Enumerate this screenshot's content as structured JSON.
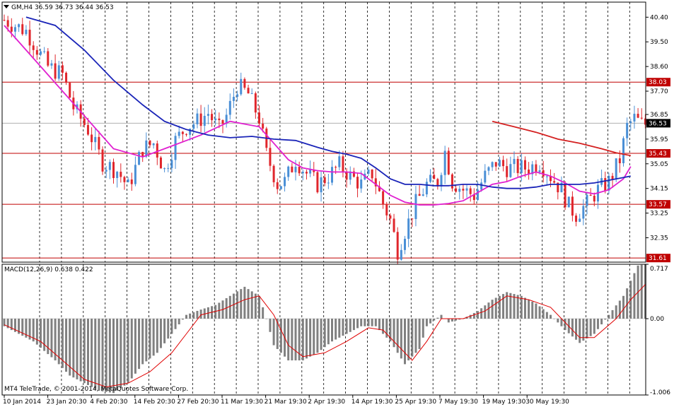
{
  "window": {
    "symbol_info": "GM,H4  36.59 36.73 36.44 36.53",
    "copyright": "MT4 TeleTrade, © 2001-2014, MetaQuotes Software Corp.",
    "menu_icon": "triangle-down-icon"
  },
  "colors": {
    "bull": "#4a8fd6",
    "bear": "#e0262c",
    "ma_fast": "#e020d0",
    "ma_slow": "#1a24b8",
    "ma_long": "#d42020",
    "level_line": "#c00000",
    "histogram": "#808080",
    "signal": "#e00000"
  },
  "chart_data": [
    {
      "type": "candlestick",
      "title": "GM,H4",
      "ohlc_last": {
        "open": 36.59,
        "high": 36.73,
        "low": 36.44,
        "close": 36.53
      },
      "ylim": [
        31.46,
        40.95
      ],
      "y_ticks": [
        "40.40",
        "39.50",
        "38.60",
        "37.70",
        "36.85",
        "35.95",
        "35.05",
        "34.15",
        "33.25",
        "32.35"
      ],
      "x_ticks": [
        "10 Jan 2014",
        "23 Jan 20:30",
        "4 Feb 20:30",
        "14 Feb 20:30",
        "27 Feb 20:30",
        "11 Mar 19:30",
        "21 Mar 19:30",
        "2 Apr 19:30",
        "14 Apr 19:30",
        "25 Apr 19:30",
        "7 May 19:30",
        "19 May 19:30",
        "30 May 19:30"
      ],
      "horizontal_levels": [
        {
          "value": 38.03,
          "label": "38.03"
        },
        {
          "value": 35.43,
          "label": "35.43"
        },
        {
          "value": 33.57,
          "label": "33.57"
        },
        {
          "value": 31.61,
          "label": "31.61"
        }
      ],
      "current_price": {
        "value": 36.53,
        "label": "36.53"
      },
      "price_path": [
        [
          0,
          40.3
        ],
        [
          6,
          39.9
        ],
        [
          12,
          38.6
        ],
        [
          16,
          38.3
        ],
        [
          19,
          37.1
        ],
        [
          23,
          36.3
        ],
        [
          27,
          35.1
        ],
        [
          31,
          34.8
        ],
        [
          34,
          34.2
        ],
        [
          38,
          35.6
        ],
        [
          41,
          35.8
        ],
        [
          44,
          34.8
        ],
        [
          47,
          35.9
        ],
        [
          50,
          36.4
        ],
        [
          53,
          36.6
        ],
        [
          56,
          36.9
        ],
        [
          59,
          36.3
        ],
        [
          61,
          36.8
        ],
        [
          64,
          37.9
        ],
        [
          67,
          37.6
        ],
        [
          70,
          36.7
        ],
        [
          72,
          35.4
        ],
        [
          75,
          34.3
        ],
        [
          77,
          34.4
        ],
        [
          80,
          35.2
        ],
        [
          83,
          34.7
        ],
        [
          86,
          34.3
        ],
        [
          89,
          34.6
        ],
        [
          92,
          35.0
        ],
        [
          95,
          34.6
        ],
        [
          98,
          34.3
        ],
        [
          101,
          34.7
        ],
        [
          104,
          33.6
        ],
        [
          106,
          33.0
        ],
        [
          108,
          31.9
        ],
        [
          110,
          32.6
        ],
        [
          113,
          33.6
        ],
        [
          116,
          34.3
        ],
        [
          119,
          34.4
        ],
        [
          121,
          35.5
        ],
        [
          123,
          34.4
        ],
        [
          126,
          34.1
        ],
        [
          129,
          33.9
        ],
        [
          132,
          34.6
        ],
        [
          135,
          35.1
        ],
        [
          138,
          34.9
        ],
        [
          141,
          34.9
        ],
        [
          144,
          34.9
        ],
        [
          147,
          35.1
        ],
        [
          150,
          34.6
        ],
        [
          153,
          34.1
        ],
        [
          155,
          33.5
        ],
        [
          157,
          33.2
        ],
        [
          160,
          33.6
        ],
        [
          163,
          34.1
        ],
        [
          166,
          34.4
        ],
        [
          169,
          35.2
        ],
        [
          171,
          36.4
        ],
        [
          173,
          36.7
        ],
        [
          175,
          36.5
        ]
      ],
      "series": [
        {
          "name": "",
          "color_key": "ma_fast",
          "points": [
            [
              0,
              40.1
            ],
            [
              10,
              38.6
            ],
            [
              20,
              37.1
            ],
            [
              30,
              35.6
            ],
            [
              38,
              35.3
            ],
            [
              46,
              35.7
            ],
            [
              54,
              36.1
            ],
            [
              62,
              36.6
            ],
            [
              70,
              36.4
            ],
            [
              74,
              35.8
            ],
            [
              78,
              35.2
            ],
            [
              82,
              34.9
            ],
            [
              86,
              34.8
            ],
            [
              90,
              34.75
            ],
            [
              94,
              34.75
            ],
            [
              98,
              34.7
            ],
            [
              102,
              34.3
            ],
            [
              106,
              33.9
            ],
            [
              110,
              33.65
            ],
            [
              114,
              33.55
            ],
            [
              118,
              33.55
            ],
            [
              122,
              33.6
            ],
            [
              126,
              33.7
            ],
            [
              130,
              34.0
            ],
            [
              134,
              34.3
            ],
            [
              138,
              34.4
            ],
            [
              142,
              34.6
            ],
            [
              146,
              34.75
            ],
            [
              150,
              34.6
            ],
            [
              154,
              34.35
            ],
            [
              158,
              34.05
            ],
            [
              162,
              33.95
            ],
            [
              166,
              34.1
            ],
            [
              170,
              34.5
            ],
            [
              172,
              34.95
            ]
          ]
        },
        {
          "name": "",
          "color_key": "ma_slow",
          "points": [
            [
              6,
              40.4
            ],
            [
              14,
              40.1
            ],
            [
              22,
              39.2
            ],
            [
              30,
              38.1
            ],
            [
              38,
              37.2
            ],
            [
              44,
              36.6
            ],
            [
              50,
              36.3
            ],
            [
              56,
              36.1
            ],
            [
              62,
              36.0
            ],
            [
              68,
              36.05
            ],
            [
              74,
              35.95
            ],
            [
              80,
              35.9
            ],
            [
              86,
              35.65
            ],
            [
              90,
              35.5
            ],
            [
              94,
              35.4
            ],
            [
              98,
              35.25
            ],
            [
              102,
              34.9
            ],
            [
              106,
              34.5
            ],
            [
              110,
              34.3
            ],
            [
              114,
              34.3
            ],
            [
              118,
              34.25
            ],
            [
              122,
              34.25
            ],
            [
              126,
              34.3
            ],
            [
              130,
              34.3
            ],
            [
              134,
              34.2
            ],
            [
              138,
              34.15
            ],
            [
              142,
              34.15
            ],
            [
              146,
              34.2
            ],
            [
              150,
              34.3
            ],
            [
              154,
              34.3
            ],
            [
              158,
              34.3
            ],
            [
              162,
              34.35
            ],
            [
              166,
              34.45
            ],
            [
              170,
              34.55
            ],
            [
              172,
              34.6
            ]
          ]
        },
        {
          "name": "",
          "color_key": "ma_long",
          "points": [
            [
              134,
              36.6
            ],
            [
              140,
              36.4
            ],
            [
              146,
              36.2
            ],
            [
              152,
              35.95
            ],
            [
              158,
              35.8
            ],
            [
              164,
              35.6
            ],
            [
              168,
              35.45
            ],
            [
              172,
              35.35
            ]
          ]
        }
      ]
    },
    {
      "type": "histogram",
      "title": "MACD(12,26,9) 0.638 0.422",
      "indicator": "MACD(12,26,9)",
      "main_value": 0.638,
      "signal_value": 0.422,
      "ylim": [
        -1.006,
        0.717
      ],
      "y_ticks": [
        "0.717",
        "0.00",
        "-1.006"
      ],
      "histogram_path": [
        [
          0,
          -0.1
        ],
        [
          8,
          -0.3
        ],
        [
          14,
          -0.55
        ],
        [
          18,
          -0.75
        ],
        [
          22,
          -0.85
        ],
        [
          26,
          -0.95
        ],
        [
          30,
          -0.98
        ],
        [
          34,
          -0.85
        ],
        [
          38,
          -0.6
        ],
        [
          42,
          -0.45
        ],
        [
          46,
          -0.2
        ],
        [
          50,
          0.05
        ],
        [
          54,
          0.12
        ],
        [
          58,
          0.18
        ],
        [
          62,
          0.3
        ],
        [
          66,
          0.42
        ],
        [
          70,
          0.3
        ],
        [
          72,
          0.0
        ],
        [
          74,
          -0.35
        ],
        [
          78,
          -0.55
        ],
        [
          82,
          -0.55
        ],
        [
          86,
          -0.45
        ],
        [
          90,
          -0.3
        ],
        [
          94,
          -0.2
        ],
        [
          98,
          -0.1
        ],
        [
          102,
          -0.1
        ],
        [
          106,
          -0.3
        ],
        [
          110,
          -0.6
        ],
        [
          114,
          -0.4
        ],
        [
          116,
          -0.1
        ],
        [
          120,
          0.05
        ],
        [
          122,
          -0.05
        ],
        [
          126,
          0.0
        ],
        [
          130,
          0.1
        ],
        [
          134,
          0.25
        ],
        [
          138,
          0.35
        ],
        [
          142,
          0.3
        ],
        [
          146,
          0.2
        ],
        [
          150,
          0.05
        ],
        [
          154,
          -0.15
        ],
        [
          158,
          -0.32
        ],
        [
          162,
          -0.2
        ],
        [
          166,
          0.05
        ],
        [
          170,
          0.3
        ],
        [
          174,
          0.7
        ],
        [
          176,
          0.72
        ]
      ],
      "signal_path": [
        [
          0,
          -0.08
        ],
        [
          10,
          -0.3
        ],
        [
          16,
          -0.55
        ],
        [
          22,
          -0.8
        ],
        [
          28,
          -0.9
        ],
        [
          34,
          -0.85
        ],
        [
          40,
          -0.7
        ],
        [
          46,
          -0.45
        ],
        [
          50,
          -0.2
        ],
        [
          54,
          0.05
        ],
        [
          60,
          0.12
        ],
        [
          66,
          0.25
        ],
        [
          70,
          0.3
        ],
        [
          74,
          0.05
        ],
        [
          78,
          -0.35
        ],
        [
          82,
          -0.5
        ],
        [
          88,
          -0.45
        ],
        [
          94,
          -0.3
        ],
        [
          100,
          -0.12
        ],
        [
          104,
          -0.15
        ],
        [
          108,
          -0.35
        ],
        [
          112,
          -0.55
        ],
        [
          116,
          -0.3
        ],
        [
          120,
          0.0
        ],
        [
          126,
          0.0
        ],
        [
          132,
          0.1
        ],
        [
          138,
          0.3
        ],
        [
          144,
          0.25
        ],
        [
          150,
          0.15
        ],
        [
          154,
          -0.05
        ],
        [
          158,
          -0.25
        ],
        [
          162,
          -0.25
        ],
        [
          168,
          0.0
        ],
        [
          172,
          0.25
        ],
        [
          176,
          0.45
        ]
      ]
    }
  ]
}
